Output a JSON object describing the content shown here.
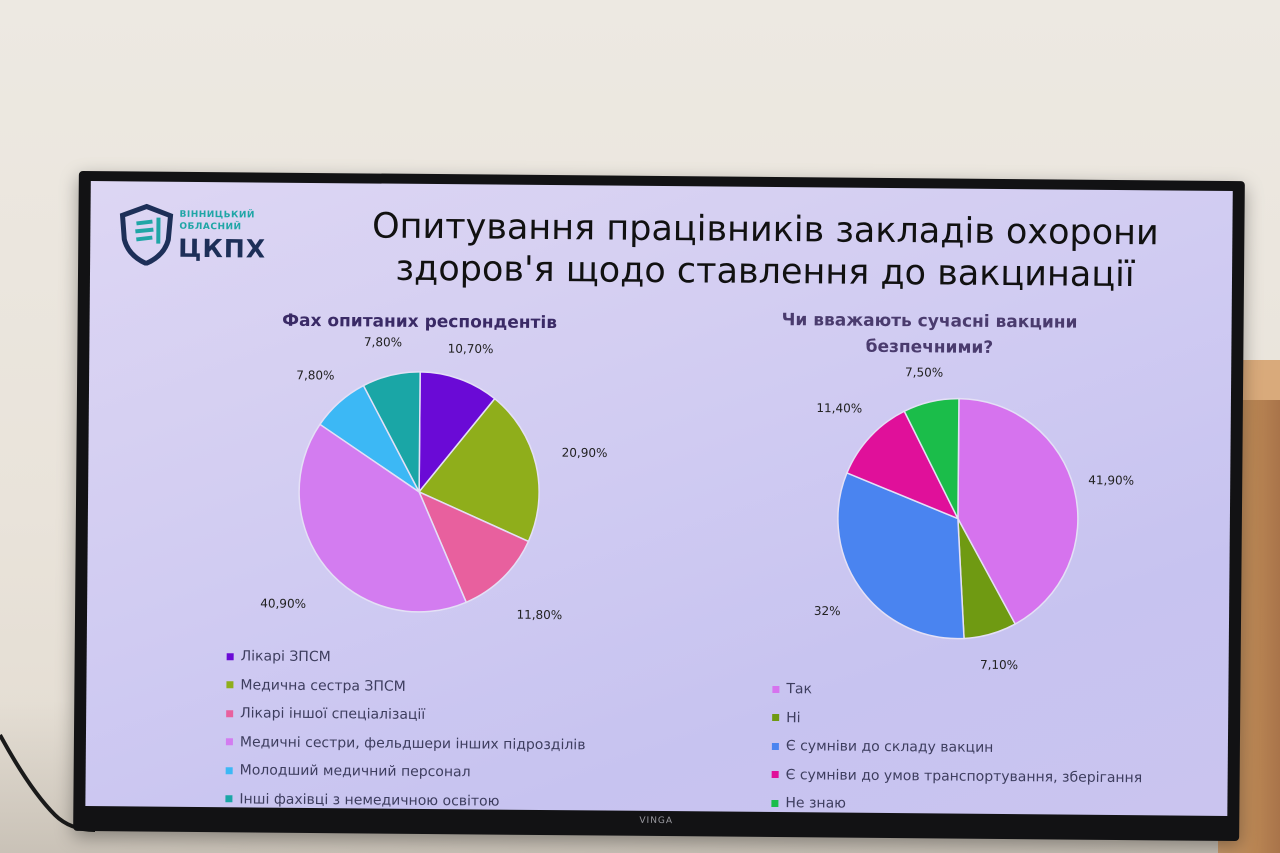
{
  "slide": {
    "logo": {
      "line1": "ВІННИЦЬКИЙ",
      "line2": "ОБЛАСНИЙ",
      "name": "ЦКПХ"
    },
    "title_line1": "Опитування працівників закладів охорони",
    "title_line2": "здоров'я щодо ставлення до вакцинації",
    "tv_brand": "VINGA"
  },
  "chart_data": [
    {
      "type": "pie",
      "title": "Фах опитаних  респондентів",
      "categories": [
        "Лікарі ЗПСМ",
        "Медична сестра ЗПСМ",
        "Лікарі іншої спеціалізації",
        "Медичні сестри, фельдшери інших підрозділів",
        "Молодший медичний персонал",
        "Інші фахівці з немедичною освітою"
      ],
      "values": [
        10.7,
        20.9,
        11.8,
        40.9,
        7.8,
        7.8
      ],
      "labels": [
        "10,70%",
        "20,90%",
        "11,80%",
        "40,90%",
        "7,80%",
        "7,80%"
      ],
      "colors": [
        "#6a0ad6",
        "#8fae1b",
        "#e8609e",
        "#d37cf0",
        "#3cb8f5",
        "#1aa6a6"
      ],
      "legend": "bottom"
    },
    {
      "type": "pie",
      "title": "Чи вважають сучасні вакцини безпечними?",
      "categories": [
        "Так",
        "Ні",
        "Є сумніви до складу вакцин",
        "Є сумніви до умов транспортування, зберігання",
        "Не знаю"
      ],
      "values": [
        41.9,
        7.1,
        32,
        11.4,
        7.5
      ],
      "labels": [
        "41,90%",
        "7,10%",
        "32%",
        "11,40%",
        "7,50%"
      ],
      "colors": [
        "#d673ee",
        "#6f9a12",
        "#4a84f0",
        "#e0109a",
        "#1bbd4a"
      ],
      "legend": "bottom"
    }
  ]
}
